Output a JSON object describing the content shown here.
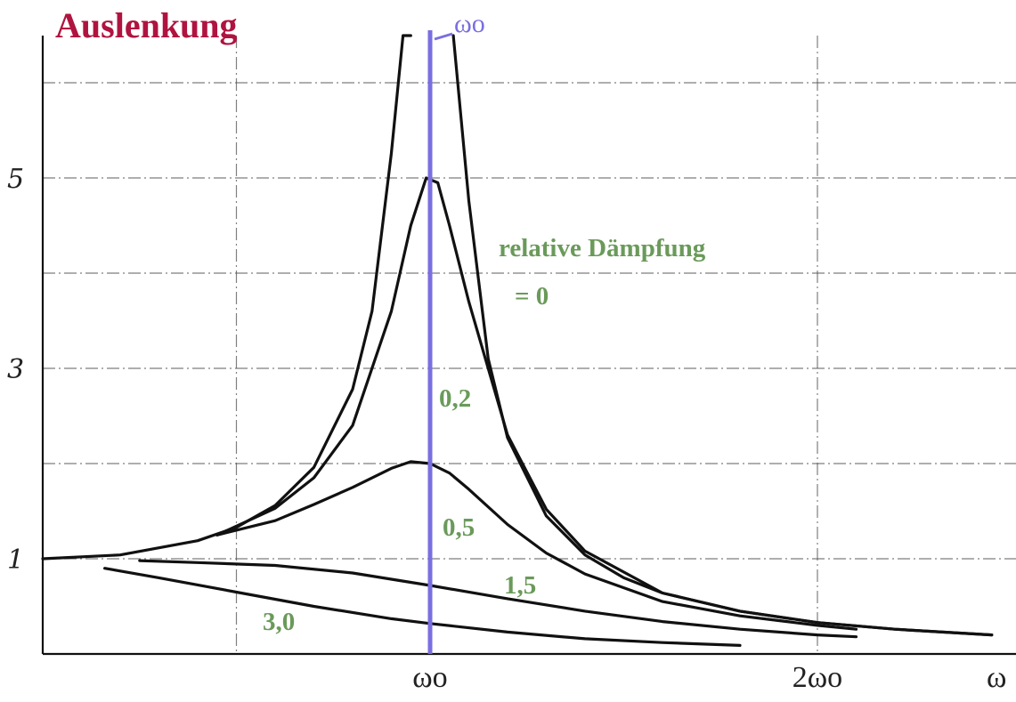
{
  "chart_data": {
    "type": "line",
    "title": "Auslenkung",
    "xlabel": "ω",
    "ylabel": "",
    "xlim": [
      0,
      2.45
    ],
    "ylim": [
      0,
      6.5
    ],
    "grid": true,
    "x_ticks": [
      {
        "value": 1.0,
        "label": "ωo"
      },
      {
        "value": 2.0,
        "label": "2ωo"
      }
    ],
    "y_ticks": [
      {
        "value": 1,
        "label": "1"
      },
      {
        "value": 3,
        "label": "3"
      },
      {
        "value": 5,
        "label": "5"
      }
    ],
    "marker": {
      "x": 1.0,
      "label": "ωo"
    },
    "legend_title": "relative Dämpfung",
    "series": [
      {
        "name": "= 0",
        "x": [
          0,
          0.2,
          0.4,
          0.5,
          0.6,
          0.7,
          0.8,
          0.85,
          0.9,
          0.93,
          0.95
        ],
        "values": [
          1.0,
          1.04,
          1.19,
          1.33,
          1.56,
          1.96,
          2.78,
          3.6,
          5.26,
          7.4,
          10.3
        ]
      },
      {
        "name": "= 0",
        "x": [
          1.06,
          1.1,
          1.15,
          1.2,
          1.3,
          1.4,
          1.5,
          1.6,
          1.8,
          2.0,
          2.2,
          2.45
        ],
        "values": [
          8.5,
          4.76,
          3.1,
          2.27,
          1.45,
          1.04,
          0.8,
          0.64,
          0.45,
          0.33,
          0.26,
          0.2
        ]
      },
      {
        "name": "0,2",
        "x": [
          0.45,
          0.6,
          0.7,
          0.8,
          0.9,
          0.95,
          0.99,
          1.02,
          1.05,
          1.1,
          1.2,
          1.3,
          1.4,
          1.6,
          1.8,
          2.0,
          2.2,
          2.45
        ],
        "values": [
          1.25,
          1.53,
          1.85,
          2.4,
          3.6,
          4.5,
          5.0,
          4.95,
          4.5,
          3.7,
          2.3,
          1.52,
          1.08,
          0.64,
          0.45,
          0.33,
          0.26,
          0.2
        ]
      },
      {
        "name": "0,5",
        "x": [
          0.45,
          0.6,
          0.7,
          0.8,
          0.9,
          0.95,
          1.0,
          1.05,
          1.1,
          1.2,
          1.3,
          1.4,
          1.6,
          1.8,
          1.9,
          2.0,
          2.1
        ],
        "values": [
          1.25,
          1.4,
          1.57,
          1.75,
          1.95,
          2.02,
          2.0,
          1.9,
          1.73,
          1.36,
          1.06,
          0.84,
          0.55,
          0.4,
          0.35,
          0.3,
          0.26
        ]
      },
      {
        "name": "1,5",
        "x": [
          0.25,
          0.4,
          0.6,
          0.8,
          1.0,
          1.2,
          1.4,
          1.6,
          1.8,
          2.0,
          2.1
        ],
        "values": [
          0.98,
          0.96,
          0.93,
          0.85,
          0.72,
          0.58,
          0.45,
          0.34,
          0.26,
          0.2,
          0.18
        ]
      },
      {
        "name": "3,0",
        "x": [
          0.16,
          0.3,
          0.5,
          0.7,
          0.9,
          1.0,
          1.2,
          1.4,
          1.6,
          1.8
        ],
        "values": [
          0.9,
          0.8,
          0.65,
          0.5,
          0.37,
          0.32,
          0.23,
          0.16,
          0.12,
          0.09
        ]
      }
    ],
    "damping_labels": [
      "= 0",
      "0,2",
      "0,5",
      "1,5",
      "3,0"
    ]
  },
  "colors": {
    "title": "#b0133f",
    "damping": "#6a9a5a",
    "resonance_marker": "#7a6fe0"
  }
}
